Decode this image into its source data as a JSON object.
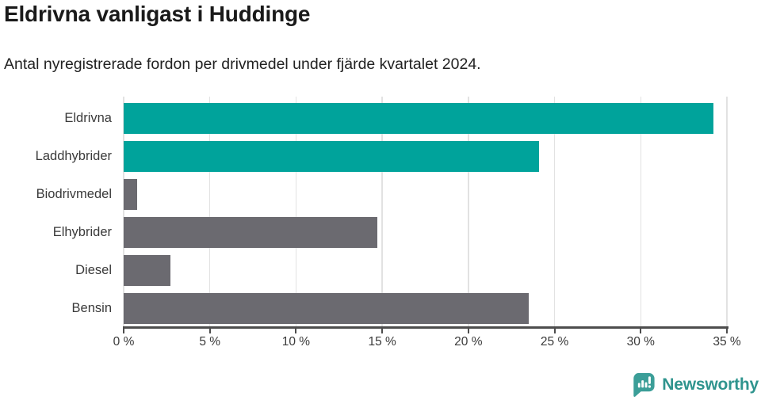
{
  "header": {
    "title": "Eldrivna vanligast i Huddinge",
    "subtitle": "Antal nyregistrerade fordon per drivmedel under fjärde kvartalet 2024."
  },
  "chart_data": {
    "type": "bar",
    "orientation": "horizontal",
    "title": "Eldrivna vanligast i Huddinge",
    "subtitle": "Antal nyregistrerade fordon per drivmedel under fjärde kvartalet 2024.",
    "categories": [
      "Eldrivna",
      "Laddhybrider",
      "Biodrivmedel",
      "Elhybrider",
      "Diesel",
      "Bensin"
    ],
    "values": [
      34.2,
      24.1,
      0.8,
      14.7,
      2.7,
      23.5
    ],
    "unit": "%",
    "bar_colors": [
      "#00a39b",
      "#00a39b",
      "#6b6a70",
      "#6b6a70",
      "#6b6a70",
      "#6b6a70"
    ],
    "accent_color": "#00a39b",
    "neutral_color": "#6b6a70",
    "xlim": [
      0,
      35
    ],
    "x_tick_values": [
      0,
      5,
      10,
      15,
      20,
      25,
      30,
      35
    ],
    "x_tick_labels": [
      "0 %",
      "5 %",
      "10 %",
      "15 %",
      "20 %",
      "25 %",
      "30 %",
      "35 %"
    ],
    "grid": true,
    "gridline_color": "#e2e2e2",
    "axis_color": "#4d4d4d",
    "legend": "none"
  },
  "footer": {
    "brand": "Newsworthy",
    "logo_icon": "bar-chart-speech-bubble",
    "brand_color": "#2f948e",
    "logo_color": "#3b9e98"
  }
}
